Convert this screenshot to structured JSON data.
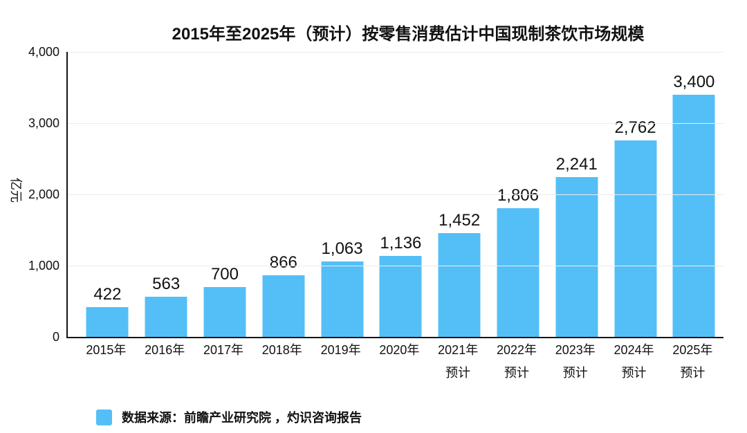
{
  "title": "2015年至2025年（预计）按零售消费估计中国现制茶饮市场规模",
  "y_axis": {
    "name": "亿元",
    "tick_labels": [
      "0",
      "1,000",
      "2,000",
      "3,000",
      "4,000"
    ]
  },
  "legend": {
    "text": "数据来源：前瞻产业研究院 ，灼识咨询报告",
    "swatch_color": "#54BFF7"
  },
  "colors": {
    "bar": "#54BFF7",
    "axis": "#141414",
    "grid": "#ECECEC",
    "text": "#111111"
  },
  "chart_data": {
    "type": "bar",
    "title": "2015年至2025年（预计）按零售消费估计中国现制茶饮市场规模",
    "xlabel": "",
    "ylabel": "亿元",
    "ylim": [
      0,
      4000
    ],
    "yticks": [
      0,
      1000,
      2000,
      3000,
      4000
    ],
    "grid": true,
    "legend_position": "bottom",
    "categories": [
      "2015年",
      "2016年",
      "2017年",
      "2018年",
      "2019年",
      "2020年",
      "2021年",
      "2022年",
      "2023年",
      "2024年",
      "2025年"
    ],
    "category_sublabels": [
      "",
      "",
      "",
      "",
      "",
      "",
      "预计",
      "预计",
      "预计",
      "预计",
      "预计"
    ],
    "values": [
      422,
      563,
      700,
      866,
      1063,
      1136,
      1452,
      1806,
      2241,
      2762,
      3400
    ],
    "value_labels": [
      "422",
      "563",
      "700",
      "866",
      "1,063",
      "1,136",
      "1,452",
      "1,806",
      "2,241",
      "2,762",
      "3,400"
    ],
    "series_name": "中国现制茶饮市场规模",
    "bar_color": "#54BFF7",
    "source": "数据来源：前瞻产业研究院 ，灼识咨询报告"
  }
}
